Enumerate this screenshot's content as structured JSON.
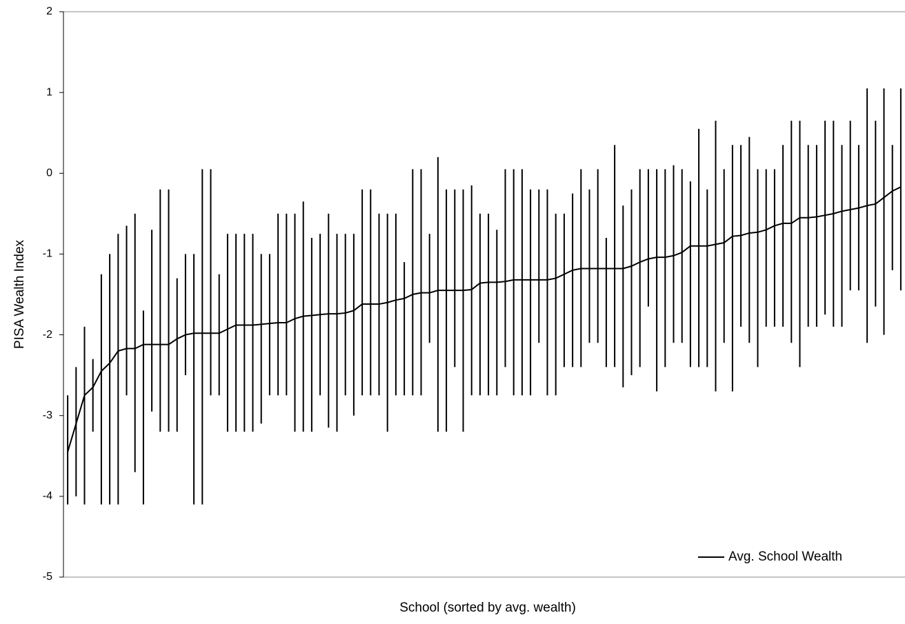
{
  "chart_data": {
    "type": "range-line",
    "ylabel": "PISA Wealth Index",
    "xlabel": "School (sorted by avg. wealth)",
    "ylim": [
      -5,
      2
    ],
    "yticks": [
      -5,
      -4,
      -3,
      -2,
      -1,
      0,
      1,
      2
    ],
    "legend": "bottom-right",
    "range_color": "#000000",
    "series": [
      {
        "name": "Avg. School Wealth",
        "color": "#000000",
        "values": [
          -3.45,
          -3.1,
          -2.75,
          -2.65,
          -2.45,
          -2.35,
          -2.2,
          -2.17,
          -2.17,
          -2.12,
          -2.12,
          -2.12,
          -2.12,
          -2.05,
          -2.0,
          -1.98,
          -1.98,
          -1.98,
          -1.98,
          -1.93,
          -1.88,
          -1.88,
          -1.88,
          -1.87,
          -1.86,
          -1.85,
          -1.85,
          -1.8,
          -1.77,
          -1.76,
          -1.75,
          -1.74,
          -1.74,
          -1.73,
          -1.7,
          -1.62,
          -1.62,
          -1.62,
          -1.6,
          -1.57,
          -1.55,
          -1.5,
          -1.48,
          -1.48,
          -1.45,
          -1.45,
          -1.45,
          -1.45,
          -1.44,
          -1.36,
          -1.35,
          -1.35,
          -1.34,
          -1.32,
          -1.32,
          -1.32,
          -1.32,
          -1.32,
          -1.3,
          -1.25,
          -1.2,
          -1.18,
          -1.18,
          -1.18,
          -1.18,
          -1.18,
          -1.18,
          -1.15,
          -1.1,
          -1.06,
          -1.04,
          -1.04,
          -1.02,
          -0.98,
          -0.9,
          -0.9,
          -0.9,
          -0.88,
          -0.86,
          -0.78,
          -0.77,
          -0.74,
          -0.73,
          -0.7,
          -0.65,
          -0.62,
          -0.62,
          -0.55,
          -0.55,
          -0.54,
          -0.52,
          -0.5,
          -0.47,
          -0.45,
          -0.43,
          -0.4,
          -0.38,
          -0.3,
          -0.22,
          -0.17
        ]
      }
    ],
    "low": [
      -4.1,
      -4.0,
      -4.1,
      -3.2,
      -4.1,
      -4.1,
      -4.1,
      -2.75,
      -3.7,
      -4.1,
      -2.95,
      -3.2,
      -3.2,
      -3.2,
      -2.5,
      -4.1,
      -4.1,
      -2.75,
      -2.75,
      -3.2,
      -3.2,
      -3.2,
      -3.2,
      -3.1,
      -2.75,
      -2.75,
      -2.75,
      -3.2,
      -3.2,
      -3.2,
      -2.75,
      -3.15,
      -3.2,
      -2.75,
      -3.0,
      -2.75,
      -2.75,
      -2.75,
      -3.2,
      -2.75,
      -2.75,
      -2.75,
      -2.75,
      -2.1,
      -3.2,
      -3.2,
      -2.4,
      -3.2,
      -2.75,
      -2.75,
      -2.75,
      -2.75,
      -2.4,
      -2.75,
      -2.75,
      -2.75,
      -2.1,
      -2.75,
      -2.75,
      -2.4,
      -2.4,
      -2.4,
      -2.1,
      -2.1,
      -2.4,
      -2.4,
      -2.65,
      -2.5,
      -2.4,
      -1.65,
      -2.7,
      -2.4,
      -2.1,
      -2.1,
      -2.4,
      -2.4,
      -2.4,
      -2.7,
      -2.1,
      -2.7,
      -1.9,
      -2.1,
      -2.4,
      -1.9,
      -1.9,
      -1.9,
      -2.1,
      -2.4,
      -1.9,
      -1.9,
      -1.75,
      -1.9,
      -1.9,
      -1.45,
      -1.45,
      -2.1,
      -1.65,
      -2.0,
      -1.2,
      -1.45
    ],
    "high": [
      -2.75,
      -2.4,
      -1.9,
      -2.3,
      -1.25,
      -1.0,
      -0.75,
      -0.65,
      -0.5,
      -1.7,
      -0.7,
      -0.2,
      -0.2,
      -1.3,
      -1.0,
      -1.0,
      0.05,
      0.05,
      -1.25,
      -0.75,
      -0.75,
      -0.75,
      -0.75,
      -1.0,
      -1.0,
      -0.5,
      -0.5,
      -0.5,
      -0.35,
      -0.8,
      -0.75,
      -0.5,
      -0.75,
      -0.75,
      -0.75,
      -0.2,
      -0.2,
      -0.5,
      -0.5,
      -0.5,
      -1.1,
      0.05,
      0.05,
      -0.75,
      0.2,
      -0.2,
      -0.2,
      -0.2,
      -0.15,
      -0.5,
      -0.5,
      -0.7,
      0.05,
      0.05,
      0.05,
      -0.2,
      -0.2,
      -0.2,
      -0.5,
      -0.5,
      -0.25,
      0.05,
      -0.2,
      0.05,
      -0.8,
      0.35,
      -0.4,
      -0.2,
      0.05,
      0.05,
      0.05,
      0.05,
      0.1,
      0.05,
      -0.1,
      0.55,
      -0.2,
      0.65,
      0.05,
      0.35,
      0.35,
      0.45,
      0.05,
      0.05,
      0.05,
      0.35,
      0.65,
      0.65,
      0.35,
      0.35,
      0.65,
      0.65,
      0.35,
      0.65,
      0.35,
      1.05,
      0.65,
      1.05,
      0.35,
      1.05
    ]
  }
}
